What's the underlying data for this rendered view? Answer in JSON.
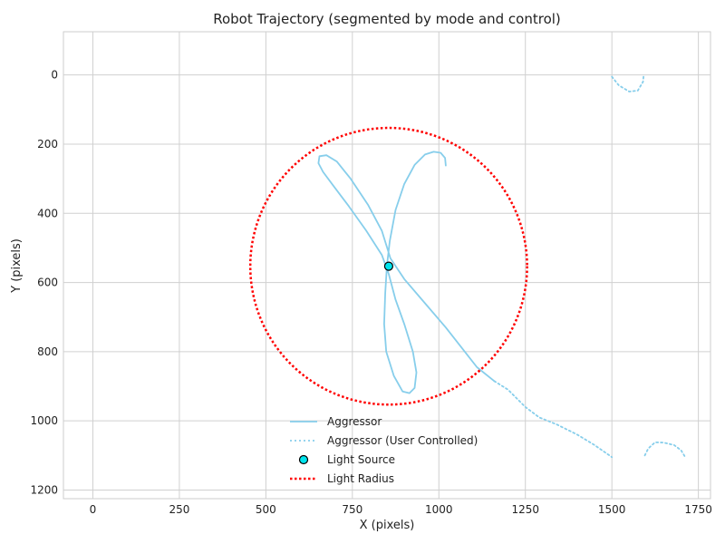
{
  "chart_data": {
    "type": "line",
    "title": "Robot Trajectory (segmented by mode and control)",
    "xlabel": "X (pixels)",
    "ylabel": "Y (pixels)",
    "xlim": [
      -85,
      1785
    ],
    "ylim": [
      1225,
      -125
    ],
    "y_inverted": true,
    "grid": true,
    "x_ticks": [
      0,
      250,
      500,
      750,
      1000,
      1250,
      1500,
      1750
    ],
    "y_ticks": [
      0,
      200,
      400,
      600,
      800,
      1000,
      1200
    ],
    "legend_position": "bottom-center",
    "colors": {
      "trajectory": "#87ceeb",
      "light_radius": "#ff0000",
      "light_source_fill": "#00e5ee",
      "light_source_edge": "#000000"
    },
    "series": [
      {
        "name": "Aggressor",
        "style": "solid",
        "points": [
          [
            1020,
            262
          ],
          [
            1018,
            240
          ],
          [
            1005,
            225
          ],
          [
            985,
            222
          ],
          [
            960,
            230
          ],
          [
            930,
            260
          ],
          [
            900,
            315
          ],
          [
            875,
            390
          ],
          [
            858,
            480
          ],
          [
            850,
            550
          ],
          [
            845,
            630
          ],
          [
            842,
            720
          ],
          [
            848,
            800
          ],
          [
            870,
            870
          ],
          [
            895,
            915
          ],
          [
            915,
            920
          ],
          [
            930,
            905
          ],
          [
            935,
            860
          ],
          [
            925,
            800
          ],
          [
            900,
            720
          ],
          [
            875,
            650
          ],
          [
            855,
            575
          ],
          [
            835,
            520
          ],
          [
            790,
            450
          ],
          [
            740,
            380
          ],
          [
            695,
            320
          ],
          [
            665,
            280
          ],
          [
            652,
            255
          ],
          [
            655,
            235
          ],
          [
            675,
            232
          ],
          [
            705,
            250
          ],
          [
            745,
            300
          ],
          [
            795,
            375
          ],
          [
            835,
            450
          ],
          [
            860,
            530
          ],
          [
            900,
            590
          ],
          [
            960,
            660
          ],
          [
            1020,
            730
          ],
          [
            1075,
            800
          ],
          [
            1110,
            845
          ],
          [
            1160,
            885
          ]
        ]
      },
      {
        "name": "Aggressor (User Controlled)",
        "style": "dotted",
        "segments": [
          [
            [
              1160,
              885
            ],
            [
              1200,
              910
            ],
            [
              1250,
              960
            ],
            [
              1290,
              990
            ],
            [
              1340,
              1010
            ],
            [
              1400,
              1040
            ],
            [
              1450,
              1070
            ],
            [
              1500,
              1105
            ]
          ],
          [
            [
              1500,
              5
            ],
            [
              1520,
              30
            ],
            [
              1550,
              48
            ],
            [
              1575,
              45
            ],
            [
              1590,
              20
            ],
            [
              1592,
              0
            ]
          ],
          [
            [
              1595,
              1100
            ],
            [
              1605,
              1080
            ],
            [
              1625,
              1062
            ],
            [
              1650,
              1063
            ],
            [
              1680,
              1070
            ],
            [
              1700,
              1085
            ],
            [
              1712,
              1105
            ]
          ]
        ]
      }
    ],
    "light_source": {
      "name": "Light Source",
      "x": 855,
      "y": 553
    },
    "light_radius": {
      "name": "Light Radius",
      "cx": 855,
      "cy": 553,
      "r": 400
    }
  }
}
